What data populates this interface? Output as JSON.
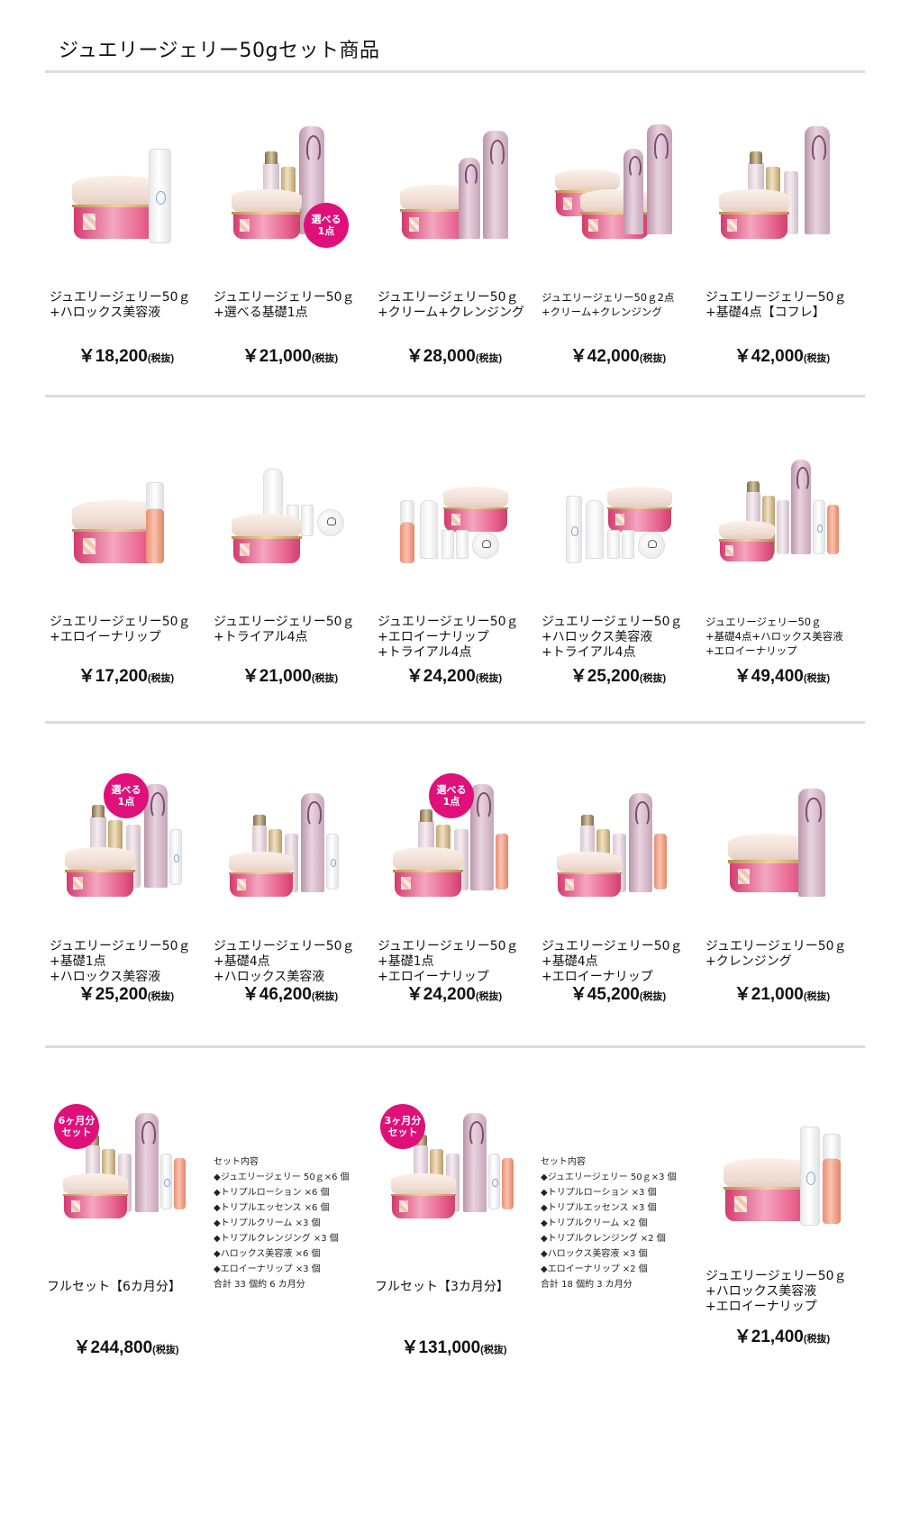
{
  "page": {
    "title": "ジュエリージェリー50gセット商品"
  },
  "tax_suffix": "(税抜)",
  "badges": {
    "choose_one": "選べる\n1点",
    "six_month": "6ヶ月分\nセット",
    "three_month": "3ヶ月分\nセット"
  },
  "rows": [
    {
      "items": [
        {
          "name": [
            "ジュエリージェリー50ｇ",
            "+ハロックス美容液"
          ],
          "price": "￥18,200"
        },
        {
          "name": [
            "ジュエリージェリー50ｇ",
            "+選べる基礎1点"
          ],
          "price": "￥21,000"
        },
        {
          "name": [
            "ジュエリージェリー50ｇ",
            "+クリーム+クレンジング"
          ],
          "price": "￥28,000"
        },
        {
          "name": [
            "ジュエリージェリー50ｇ2点",
            "+クリーム+クレンジング"
          ],
          "price": "￥42,000"
        },
        {
          "name": [
            "ジュエリージェリー50ｇ",
            "+基礎4点【コフレ】"
          ],
          "price": "￥42,000"
        }
      ]
    },
    {
      "items": [
        {
          "name": [
            "ジュエリージェリー50ｇ",
            "+エロイーナリップ"
          ],
          "price": "￥17,200"
        },
        {
          "name": [
            "ジュエリージェリー50ｇ",
            "+トライアル4点"
          ],
          "price": "￥21,000"
        },
        {
          "name": [
            "ジュエリージェリー50ｇ",
            "+エロイーナリップ",
            "+トライアル4点"
          ],
          "price": "￥24,200"
        },
        {
          "name": [
            "ジュエリージェリー50ｇ",
            "+ハロックス美容液",
            "+トライアル4点"
          ],
          "price": "￥25,200"
        },
        {
          "name": [
            "ジュエリージェリー50ｇ",
            "+基礎4点+ハロックス美容液",
            "+エロイーナリップ"
          ],
          "price": "￥49,400"
        }
      ]
    },
    {
      "items": [
        {
          "name": [
            "ジュエリージェリー50ｇ",
            "+基礎1点",
            "+ハロックス美容液"
          ],
          "price": "￥25,200"
        },
        {
          "name": [
            "ジュエリージェリー50ｇ",
            "+基礎4点",
            "+ハロックス美容液"
          ],
          "price": "￥46,200"
        },
        {
          "name": [
            "ジュエリージェリー50ｇ",
            "+基礎1点",
            "+エロイーナリップ"
          ],
          "price": "￥24,200"
        },
        {
          "name": [
            "ジュエリージェリー50ｇ",
            "+基礎4点",
            "+エロイーナリップ"
          ],
          "price": "￥45,200"
        },
        {
          "name": [
            "ジュエリージェリー50ｇ",
            "+クレンジング"
          ],
          "price": "￥21,000"
        }
      ]
    },
    {
      "items": [
        {
          "name": [
            "フルセット【6カ月分】"
          ],
          "price": "￥244,800",
          "contents": [
            "セット内容",
            "◆ジュエリージェリー 50ｇ×6 個",
            "◆トリプルローション ×6 個",
            "◆トリプルエッセンス ×6 個",
            "◆トリプルクリーム ×3 個",
            "◆トリプルクレンジング ×3 個",
            "◆ハロックス美容液 ×6 個",
            "◆エロイーナリップ ×3 個",
            "合計 33 個約 6 カ月分"
          ]
        },
        {
          "name": [
            "フルセット【3カ月分】"
          ],
          "price": "￥131,000",
          "contents": [
            "セット内容",
            "◆ジュエリージェリー 50ｇ×3 個",
            "◆トリプルローション ×3 個",
            "◆トリプルエッセンス ×3 個",
            "◆トリプルクリーム ×2 個",
            "◆トリプルクレンジング ×2 個",
            "◆ハロックス美容液 ×3 個",
            "◆エロイーナリップ ×2 個",
            "合計 18 個約 3 カ月分"
          ]
        },
        {
          "name": [
            "ジュエリージェリー50ｇ",
            "+ハロックス美容液",
            "+エロイーナリップ"
          ],
          "price": "￥21,400"
        }
      ]
    }
  ]
}
